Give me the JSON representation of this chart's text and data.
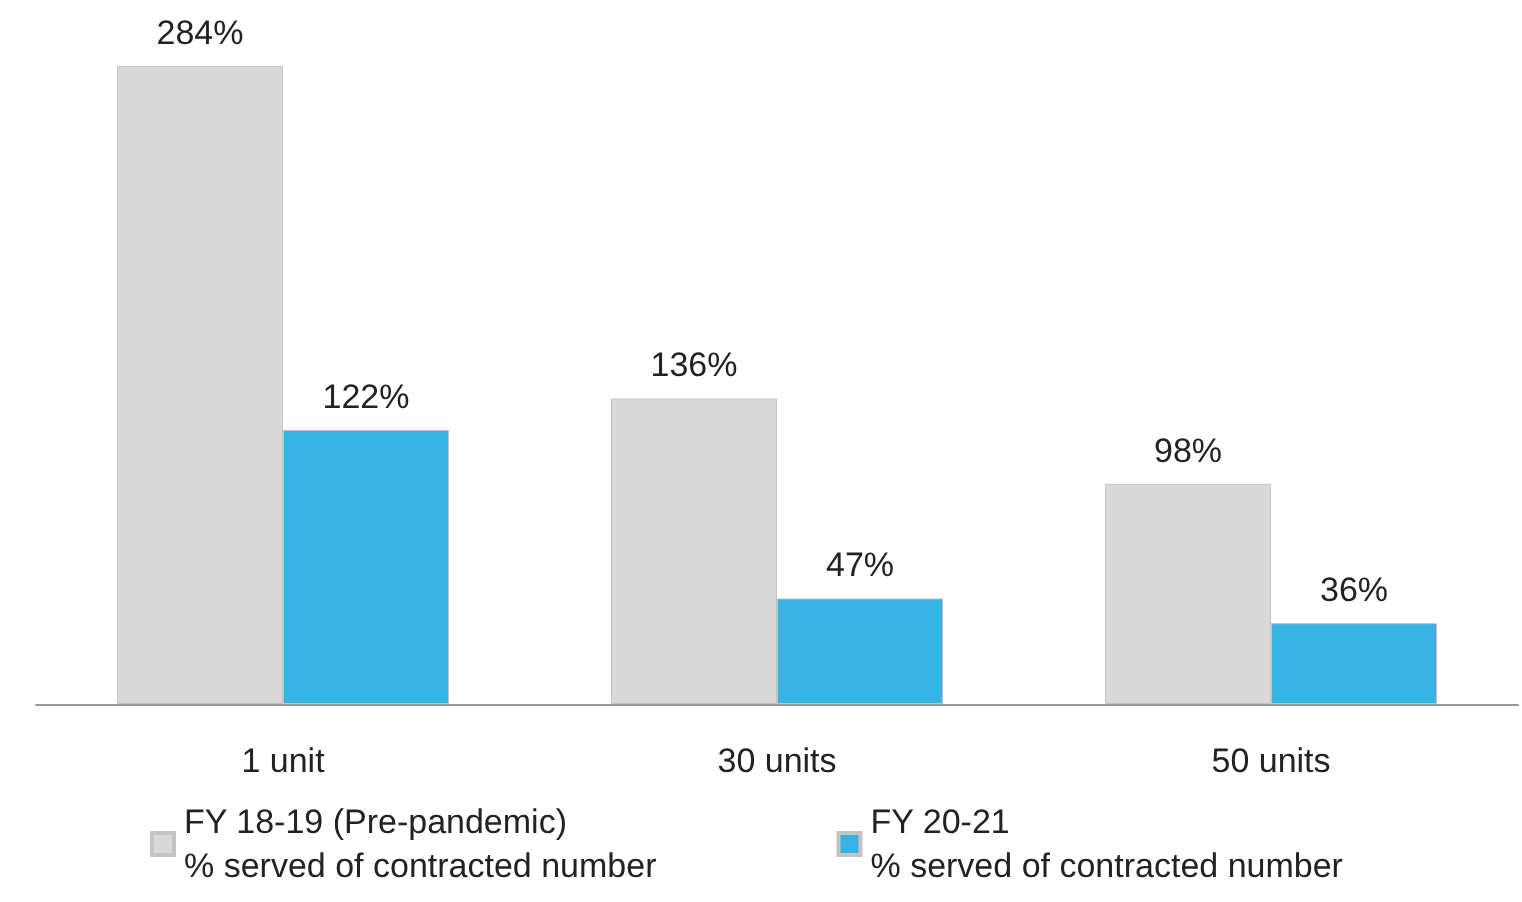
{
  "chart_data": {
    "type": "bar",
    "categories": [
      "1 unit",
      "30 units",
      "50 units"
    ],
    "series": [
      {
        "name": "FY 18-19 (Pre-pandemic)\n% served of contracted number",
        "color": "#d9d9d9",
        "values": [
          284,
          136,
          98
        ],
        "value_labels": [
          "284%",
          "136%",
          "98%"
        ]
      },
      {
        "name": "FY 20-21\n% served of contracted number",
        "color": "#38b4e4",
        "values": [
          122,
          47,
          36
        ],
        "value_labels": [
          "122%",
          "47%",
          "36%"
        ]
      }
    ],
    "legend": "bottom",
    "grid": false
  }
}
